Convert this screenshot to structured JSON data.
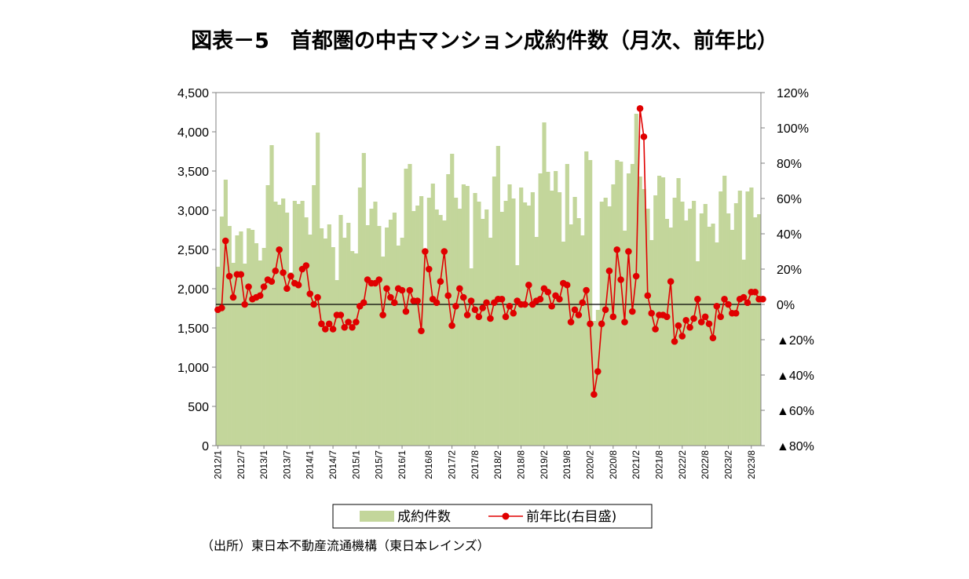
{
  "chart_data": {
    "type": "bar+line",
    "title": "図表－5　首都圏の中古マンション成約件数（月次、前年比）",
    "source": "（出所）東日本不動産流通機構（東日本レインズ）",
    "x_tick_labels": [
      "2012/1",
      "2012/7",
      "2013/1",
      "2013/7",
      "2014/1",
      "2014/7",
      "2015/1",
      "2015/7",
      "2016/1",
      "2016/8",
      "2017/2",
      "2017/8",
      "2018/2",
      "2018/8",
      "2019/2",
      "2019/8",
      "2020/2",
      "2020/8",
      "2021/2",
      "2021/8",
      "2022/2",
      "2022/8",
      "2023/2",
      "2023/8"
    ],
    "x_tick_index": [
      0,
      6,
      12,
      18,
      24,
      30,
      36,
      42,
      48,
      55,
      61,
      67,
      73,
      79,
      85,
      91,
      97,
      103,
      109,
      115,
      121,
      127,
      133,
      139
    ],
    "y_left": {
      "range": [
        0,
        4500
      ],
      "ticks": [
        0,
        500,
        1000,
        1500,
        2000,
        2500,
        3000,
        3500,
        4000,
        4500
      ],
      "tick_labels": [
        "0",
        "500",
        "1,000",
        "1,500",
        "2,000",
        "2,500",
        "3,000",
        "3,500",
        "4,000",
        "4,500"
      ]
    },
    "y_right": {
      "range": [
        -80,
        120
      ],
      "ticks": [
        -80,
        -60,
        -40,
        -20,
        0,
        20,
        40,
        60,
        80,
        100,
        120
      ],
      "tick_labels": [
        "▲80%",
        "▲60%",
        "▲40%",
        "▲20%",
        "0%",
        "20%",
        "40%",
        "60%",
        "80%",
        "100%",
        "120%"
      ]
    },
    "series": [
      {
        "name": "成約件数",
        "type": "bar",
        "axis": "left",
        "color": "#c3d69b",
        "values": [
          2280,
          2920,
          3390,
          2800,
          2330,
          2680,
          2730,
          2320,
          2770,
          2750,
          2580,
          2360,
          2520,
          3320,
          3830,
          3110,
          3070,
          3150,
          2970,
          2210,
          3120,
          3080,
          3120,
          2910,
          2690,
          3320,
          3990,
          2770,
          2640,
          2820,
          2530,
          2110,
          2940,
          2650,
          2840,
          2480,
          2450,
          3290,
          3730,
          2810,
          3020,
          3110,
          2800,
          2410,
          2780,
          2880,
          2970,
          2550,
          2650,
          3530,
          3590,
          2990,
          3060,
          3180,
          2470,
          3160,
          3340,
          3010,
          2940,
          2870,
          3460,
          3720,
          3160,
          3020,
          3330,
          3310,
          2260,
          3220,
          3110,
          2890,
          3010,
          2650,
          3430,
          3820,
          2980,
          3120,
          3330,
          3150,
          2300,
          3290,
          3100,
          3060,
          3230,
          2660,
          3470,
          4120,
          3490,
          3250,
          3500,
          3230,
          2600,
          3590,
          2820,
          3170,
          2900,
          2680,
          3750,
          3640,
          1590,
          1730,
          3110,
          3160,
          3050,
          3330,
          3640,
          3620,
          2740,
          3470,
          3590,
          4230,
          3430,
          3270,
          3020,
          2620,
          3190,
          3440,
          3420,
          2890,
          2780,
          3160,
          3410,
          3110,
          2870,
          3020,
          3120,
          2350,
          2960,
          3080,
          2790,
          2830,
          2590,
          3240,
          3440,
          2960,
          2750,
          3090,
          3250,
          2370,
          3240,
          3290,
          2910,
          2950
        ]
      },
      {
        "name": "前年比(右目盛)",
        "type": "line",
        "axis": "right",
        "color": "#e00000",
        "values": [
          -3,
          -2,
          36,
          16,
          4,
          17,
          17,
          0,
          10,
          3,
          4,
          5,
          10,
          14,
          13,
          19,
          31,
          18,
          9,
          16,
          12,
          11,
          20,
          22,
          6,
          0,
          4,
          -11,
          -14,
          -11,
          -14,
          -6,
          -6,
          -13,
          -10,
          -13,
          -10,
          -1,
          1,
          14,
          12,
          12,
          14,
          -6,
          9,
          4,
          1,
          9,
          8,
          -4,
          8,
          2,
          2,
          -15,
          30,
          20,
          3,
          1,
          13,
          30,
          5,
          -12,
          -1,
          9,
          4,
          -6,
          2,
          -3,
          -7,
          -2,
          1,
          -8,
          1,
          3,
          3,
          -7,
          -1,
          -5,
          2,
          0,
          0,
          11,
          0,
          2,
          3,
          9,
          7,
          -1,
          5,
          3,
          12,
          11,
          -10,
          -3,
          -6,
          1,
          8,
          -11,
          -51,
          -38,
          -11,
          -3,
          19,
          -7,
          31,
          14,
          -10,
          30,
          -4,
          16,
          111,
          95,
          5,
          -5,
          -14,
          -6,
          -6,
          -7,
          13,
          -21,
          -12,
          -18,
          -9,
          -13,
          -8,
          3,
          -10,
          -7,
          -11,
          -19,
          -1,
          -7,
          3,
          0,
          -5,
          -5,
          3,
          4,
          1,
          7,
          7,
          3,
          3
        ]
      }
    ],
    "reference_line": 0,
    "grid": false,
    "legend_position": "bottom"
  }
}
